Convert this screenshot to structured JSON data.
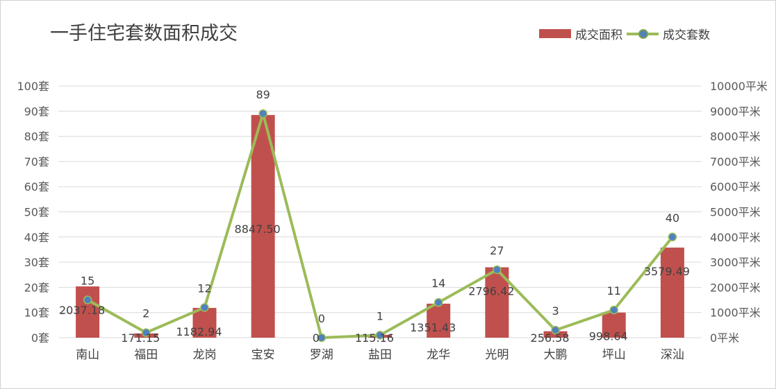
{
  "colors": {
    "bar": "#c0504d",
    "line": "#9bbb59",
    "marker": "#4f81bd",
    "grid": "#d9d9d9",
    "text": "#404040"
  },
  "chart_data": {
    "type": "bar",
    "title": "一手住宅套数面积成交",
    "categories": [
      "南山",
      "福田",
      "龙岗",
      "宝安",
      "罗湖",
      "盐田",
      "龙华",
      "光明",
      "大鹏",
      "坪山",
      "深汕"
    ],
    "series": [
      {
        "name": "成交面积",
        "type": "bar",
        "axis": "right",
        "values": [
          2037.18,
          171.15,
          1182.94,
          8847.5,
          0,
          115.16,
          1351.43,
          2796.42,
          256.58,
          998.64,
          3579.49
        ],
        "labels": [
          "2037.18",
          "171.15",
          "1182.94",
          "8847.50",
          "0",
          "115.16",
          "1351.43",
          "2796.42",
          "256.58",
          "998.64",
          "3579.49"
        ]
      },
      {
        "name": "成交套数",
        "type": "line",
        "axis": "left",
        "values": [
          15,
          2,
          12,
          89,
          0,
          1,
          14,
          27,
          3,
          11,
          40
        ],
        "labels": [
          "15",
          "2",
          "12",
          "89",
          "0",
          "1",
          "14",
          "27",
          "3",
          "11",
          "40"
        ]
      }
    ],
    "y_left": {
      "lim": [
        0,
        100
      ],
      "step": 10,
      "ticks": [
        "0套",
        "10套",
        "20套",
        "30套",
        "40套",
        "50套",
        "60套",
        "70套",
        "80套",
        "90套",
        "100套"
      ]
    },
    "y_right": {
      "lim": [
        0,
        10000
      ],
      "step": 1000,
      "ticks": [
        "0平米",
        "1000平米",
        "2000平米",
        "3000平米",
        "4000平米",
        "5000平米",
        "6000平米",
        "7000平米",
        "8000平米",
        "9000平米",
        "10000平米"
      ]
    },
    "grid": true,
    "legend": "top-right"
  }
}
